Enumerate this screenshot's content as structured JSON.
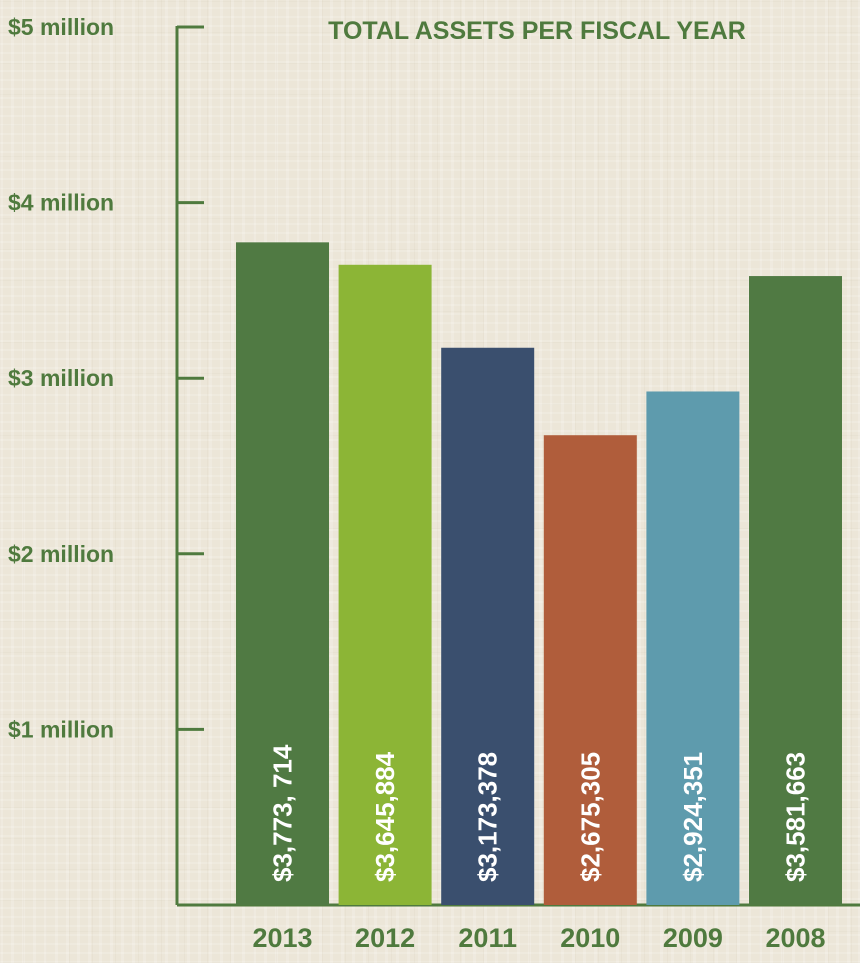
{
  "chart_data": {
    "type": "bar",
    "title": "TOTAL ASSETS PER FISCAL YEAR",
    "categories": [
      "2013",
      "2012",
      "2011",
      "2010",
      "2009",
      "2008"
    ],
    "values": [
      3773714,
      3645884,
      3173378,
      2675305,
      2924351,
      3581663
    ],
    "data_labels": [
      "$3,773, 714",
      "$3,645,884",
      "$3,173,378",
      "$2,675,305",
      "$2,924,351",
      "$3,581,663"
    ],
    "bar_colors": [
      "#507a43",
      "#8cb536",
      "#3a4f6e",
      "#b05d3b",
      "#5e9bad",
      "#507a43"
    ],
    "yticks": [
      1000000,
      2000000,
      3000000,
      4000000,
      5000000
    ],
    "ytick_labels": [
      "$1 million",
      "$2 million",
      "$3 million",
      "$4 million",
      "$5 million"
    ],
    "ylim": [
      0,
      5000000
    ],
    "grid": false,
    "legend": "none",
    "axis_color": "#4f7a3e",
    "text_color": "#ffffff"
  }
}
